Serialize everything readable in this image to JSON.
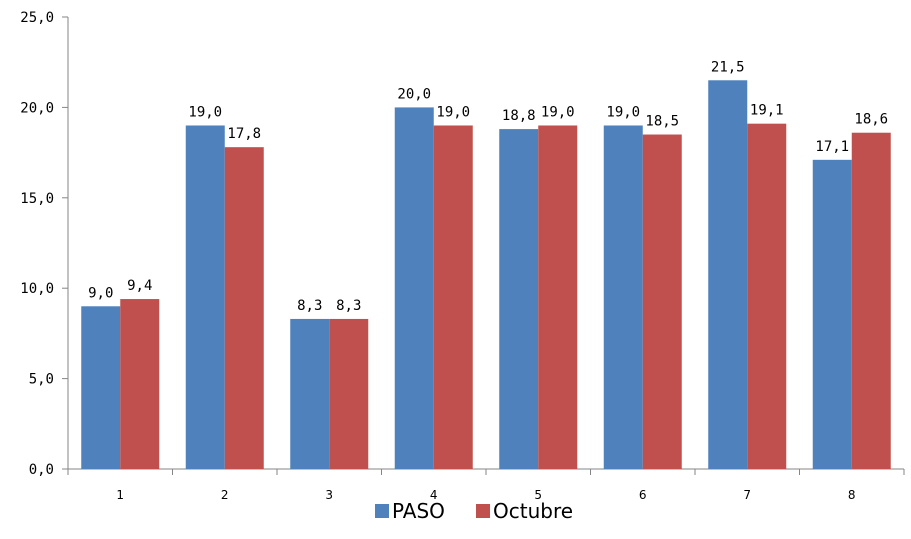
{
  "chart_data": {
    "type": "bar",
    "categories": [
      "1",
      "2",
      "3",
      "4",
      "5",
      "6",
      "7",
      "8"
    ],
    "series": [
      {
        "name": "PASO",
        "color": "#4F81BD",
        "values": [
          9.0,
          19.0,
          8.3,
          20.0,
          18.8,
          19.0,
          21.5,
          17.1
        ],
        "labels": [
          "9,0",
          "19,0",
          "8,3",
          "20,0",
          "18,8",
          "19,0",
          "21,5",
          "17,1"
        ]
      },
      {
        "name": "Octubre",
        "color": "#C0504D",
        "values": [
          9.4,
          17.8,
          8.3,
          19.0,
          19.0,
          18.5,
          19.1,
          18.6
        ],
        "labels": [
          "9,4",
          "17,8",
          "8,3",
          "19,0",
          "19,0",
          "18,5",
          "19,1",
          "18,6"
        ]
      }
    ],
    "ylim": [
      0,
      25
    ],
    "yticks": [
      0,
      5,
      10,
      15,
      20,
      25
    ],
    "ytick_labels": [
      "0,0",
      "5,0",
      "10,0",
      "15,0",
      "20,0",
      "25,0"
    ],
    "grid": false,
    "legend_position": "bottom-center"
  }
}
